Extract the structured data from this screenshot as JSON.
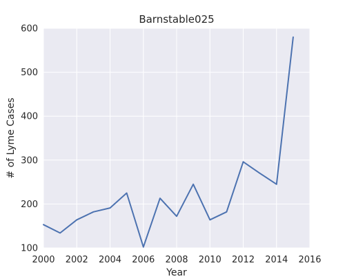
{
  "chart_data": {
    "type": "line",
    "title": "Barnstable025",
    "xlabel": "Year",
    "ylabel": "# of Lyme Cases",
    "xlim": [
      2000,
      2016
    ],
    "ylim": [
      100,
      600
    ],
    "x_ticks": [
      2000,
      2002,
      2004,
      2006,
      2008,
      2010,
      2012,
      2014,
      2016
    ],
    "y_ticks": [
      100,
      200,
      300,
      400,
      500,
      600
    ],
    "grid": true,
    "legend": "none",
    "series": [
      {
        "x": [
          2000,
          2001,
          2002,
          2003,
          2004,
          2005,
          2006,
          2007,
          2008,
          2009,
          2010,
          2011,
          2012,
          2013,
          2014,
          2015
        ],
        "values": [
          153,
          134,
          164,
          182,
          191,
          225,
          102,
          213,
          172,
          245,
          164,
          182,
          296,
          270,
          245,
          580
        ]
      }
    ],
    "colors": {
      "plot_background": "#eaeaf2",
      "grid": "#ffffff",
      "line": "#4c72b0",
      "text": "#262626"
    }
  }
}
